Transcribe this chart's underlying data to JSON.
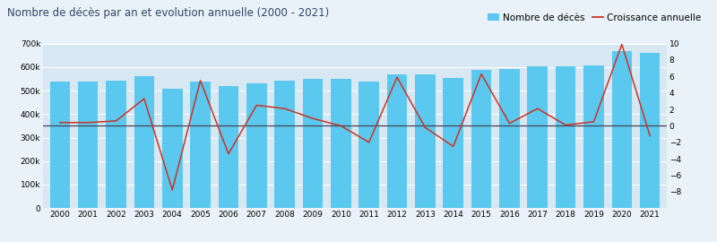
{
  "title": "Nombre de décès par an et evolution annuelle (2000 - 2021)",
  "years": [
    2000,
    2001,
    2002,
    2003,
    2004,
    2005,
    2006,
    2007,
    2008,
    2009,
    2010,
    2011,
    2012,
    2013,
    2014,
    2015,
    2016,
    2017,
    2018,
    2019,
    2020,
    2021
  ],
  "deaths": [
    540000,
    540000,
    543000,
    562000,
    509000,
    537000,
    519000,
    532000,
    543000,
    548000,
    548000,
    537000,
    569000,
    568000,
    554000,
    589000,
    591000,
    603000,
    604000,
    607000,
    667000,
    659000
  ],
  "growth": [
    0.4,
    0.4,
    0.6,
    3.3,
    -7.8,
    5.5,
    -3.4,
    2.5,
    2.1,
    0.9,
    0.0,
    -2.0,
    5.9,
    -0.2,
    -2.5,
    6.3,
    0.3,
    2.1,
    0.1,
    0.5,
    9.9,
    -1.2
  ],
  "bar_color": "#5bc8ef",
  "line_color": "#cc3322",
  "zero_line_color": "#444455",
  "background_color": "#e8f2f8",
  "plot_bg_color": "#d8e8f3",
  "legend_bar_label": "Nombre de décès",
  "legend_line_label": "Croissance annuelle",
  "ylim_left": [
    0,
    700000
  ],
  "ylim_right": [
    -10,
    10
  ],
  "yticks_left": [
    0,
    100000,
    200000,
    300000,
    400000,
    500000,
    600000,
    700000
  ],
  "yticks_right": [
    -8,
    -6,
    -4,
    -2,
    0,
    2,
    4,
    6,
    8,
    10
  ],
  "title_fontsize": 8.5,
  "tick_fontsize": 6.5,
  "legend_fontsize": 7.5,
  "title_color": "#334466"
}
